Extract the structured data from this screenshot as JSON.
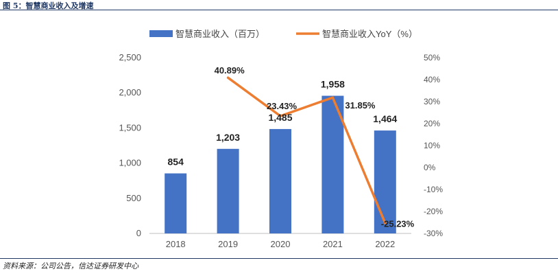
{
  "figure_title": "图 5：智慧商业收入及增速",
  "source": "资料来源：公司公告，信达证券研发中心",
  "chart_data": {
    "type": "bar",
    "categories": [
      "2018",
      "2019",
      "2020",
      "2021",
      "2022"
    ],
    "series": [
      {
        "name": "智慧商业收入（百万）",
        "type": "bar",
        "axis": "left",
        "color": "#4472C4",
        "values": [
          854,
          1203,
          1485,
          1958,
          1464
        ],
        "labels": [
          "854",
          "1,203",
          "1,485",
          "1,958",
          "1,464"
        ]
      },
      {
        "name": "智慧商业收入YoY（%）",
        "type": "line",
        "axis": "right",
        "color": "#ED7D31",
        "values": [
          null,
          40.89,
          23.43,
          31.85,
          -25.23
        ],
        "labels": [
          "",
          "40.89%",
          "23.43%",
          "31.85%",
          "-25.23%"
        ]
      }
    ],
    "y_left": {
      "min": 0,
      "max": 2500,
      "step": 500,
      "tick_labels": [
        "0",
        "500",
        "1,000",
        "1,500",
        "2,000",
        "2,500"
      ]
    },
    "y_right": {
      "min": -30,
      "max": 50,
      "step": 10,
      "tick_labels": [
        "-30%",
        "-20%",
        "-10%",
        "0%",
        "10%",
        "20%",
        "30%",
        "40%",
        "50%"
      ]
    },
    "legend_position": "top-center",
    "grid": false
  }
}
